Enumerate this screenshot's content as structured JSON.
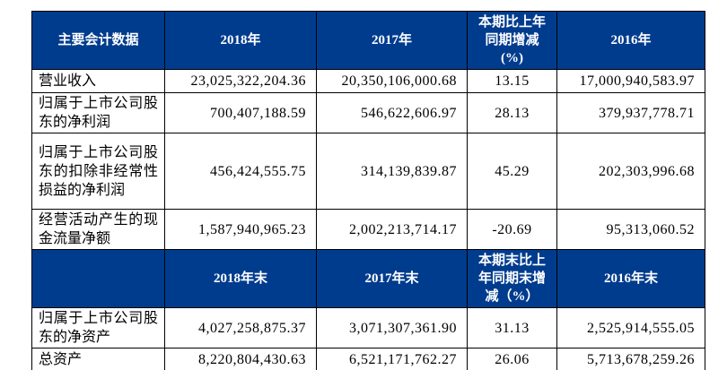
{
  "colors": {
    "header_bg": "#003C8E",
    "header_text": "#FFFFFF",
    "border": "#000000",
    "body_text": "#000000",
    "page_bg": "#FFFFFF"
  },
  "table": {
    "section1": {
      "col_headers": [
        "主要会计数据",
        "2018年",
        "2017年",
        "本期比上年\n同期增减\n(%)",
        "2016年"
      ],
      "rows": [
        {
          "label": "营业收入",
          "y2018": "23,025,322,204.36",
          "y2017": "20,350,106,000.68",
          "change_pct": "13.15",
          "y2016": "17,000,940,583.97"
        },
        {
          "label": "归属于上市公司股东的净利润",
          "y2018": "700,407,188.59",
          "y2017": "546,622,606.97",
          "change_pct": "28.13",
          "y2016": "379,937,778.71"
        },
        {
          "label": "归属于上市公司股东的扣除非经常性损益的净利润",
          "y2018": "456,424,555.75",
          "y2017": "314,139,839.87",
          "change_pct": "45.29",
          "y2016": "202,303,996.68"
        },
        {
          "label": "经营活动产生的现金流量净额",
          "y2018": "1,587,940,965.23",
          "y2017": "2,002,213,714.17",
          "change_pct": "-20.69",
          "y2016": "95,313,060.52"
        }
      ]
    },
    "section2": {
      "col_headers": [
        "",
        "2018年末",
        "2017年末",
        "本期末比上\n年同期末增\n减（%）",
        "2016年末"
      ],
      "rows": [
        {
          "label": "归属于上市公司股东的净资产",
          "y2018": "4,027,258,875.37",
          "y2017": "3,071,307,361.90",
          "change_pct": "31.13",
          "y2016": "2,525,914,555.05"
        },
        {
          "label": "总资产",
          "y2018": "8,220,804,430.63",
          "y2017": "6,521,171,762.27",
          "change_pct": "26.06",
          "y2016": "5,713,678,259.26"
        }
      ]
    }
  }
}
